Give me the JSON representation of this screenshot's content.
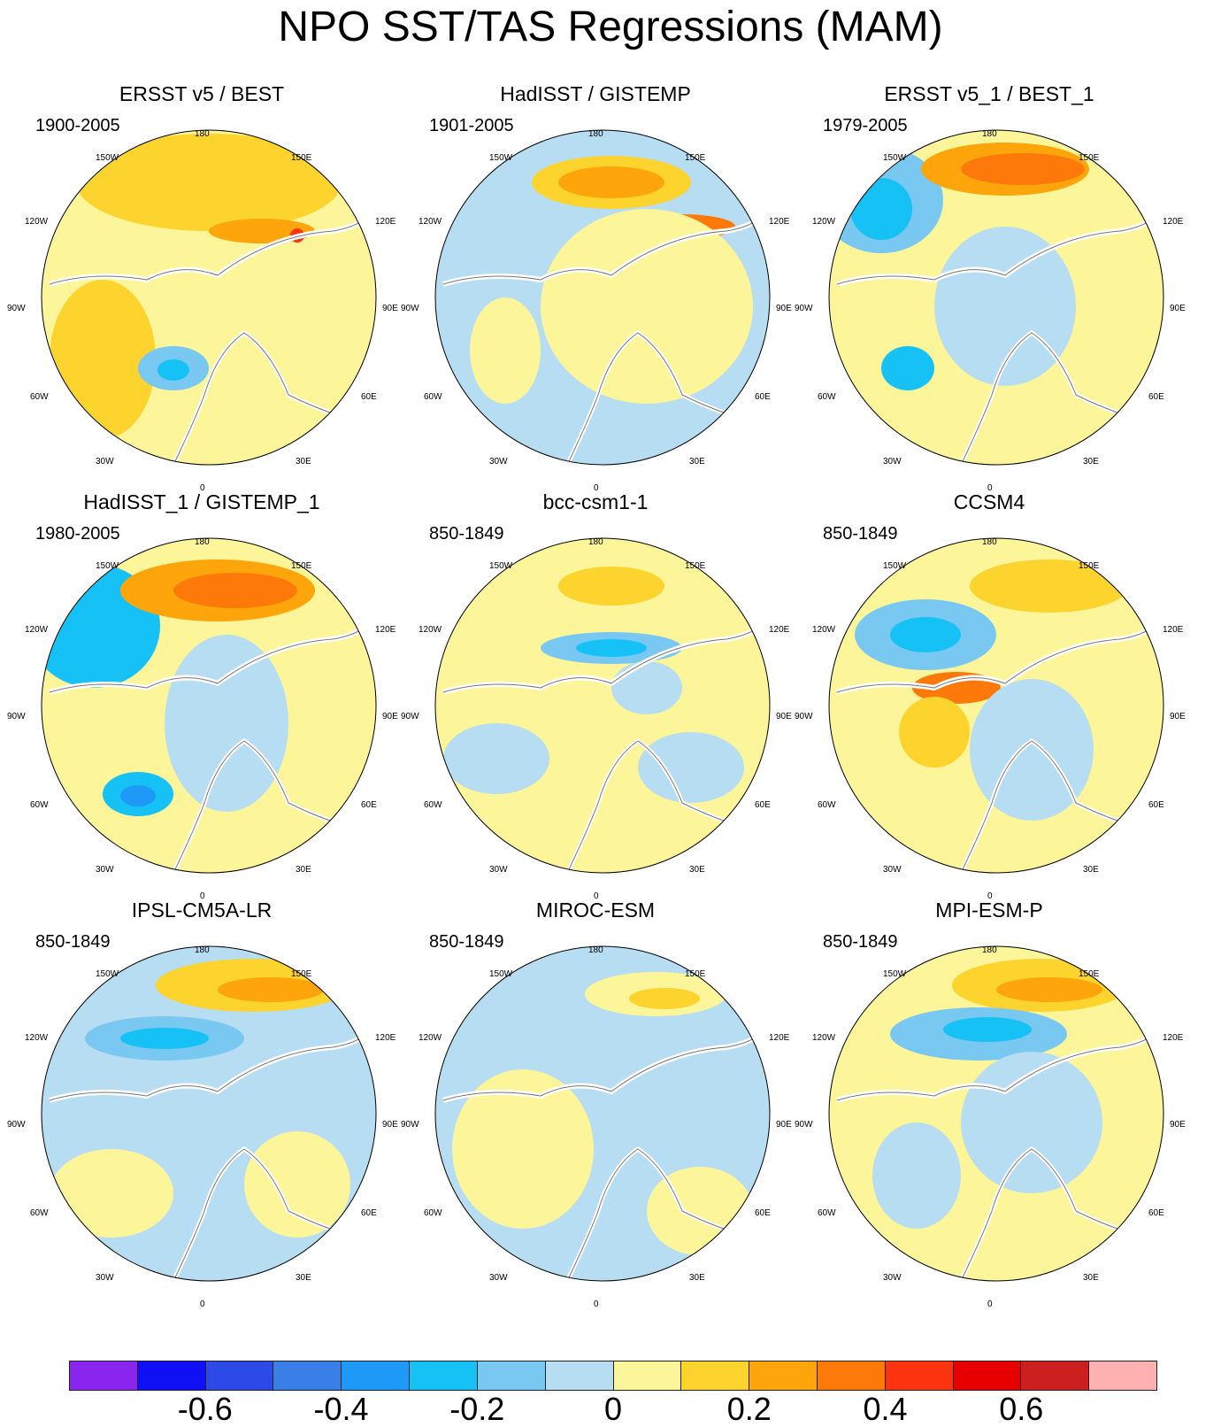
{
  "title": "NPO SST/TAS Regressions (MAM)",
  "lon_labels": [
    "180",
    "150E",
    "120E",
    "90E",
    "60E",
    "30E",
    "0",
    "30W",
    "60W",
    "90W",
    "120W",
    "150W"
  ],
  "panels": [
    {
      "title": "ERSST v5 / BEST",
      "period": "1900-2005"
    },
    {
      "title": "HadISST / GISTEMP",
      "period": "1901-2005"
    },
    {
      "title": "ERSST v5_1 / BEST_1",
      "period": "1979-2005"
    },
    {
      "title": "HadISST_1 / GISTEMP_1",
      "period": "1980-2005"
    },
    {
      "title": "bcc-csm1-1",
      "period": "850-1849"
    },
    {
      "title": "CCSM4",
      "period": "850-1849"
    },
    {
      "title": "IPSL-CM5A-LR",
      "period": "850-1849"
    },
    {
      "title": "MIROC-ESM",
      "period": "850-1849"
    },
    {
      "title": "MPI-ESM-P",
      "period": "850-1849"
    }
  ],
  "colorbar": {
    "colors": [
      "#8a25f0",
      "#1010f5",
      "#2d4ae8",
      "#3a7ee8",
      "#1f99f7",
      "#16c2f5",
      "#78c8f1",
      "#b6ddf1",
      "#fdf59a",
      "#fdd32d",
      "#fda50a",
      "#fd7a0a",
      "#fd340f",
      "#e60000",
      "#cc2020",
      "#ffb0b0"
    ],
    "labels": [
      "-0.6",
      "-0.4",
      "-0.2",
      "0",
      "0.2",
      "0.4",
      "0.6"
    ]
  }
}
